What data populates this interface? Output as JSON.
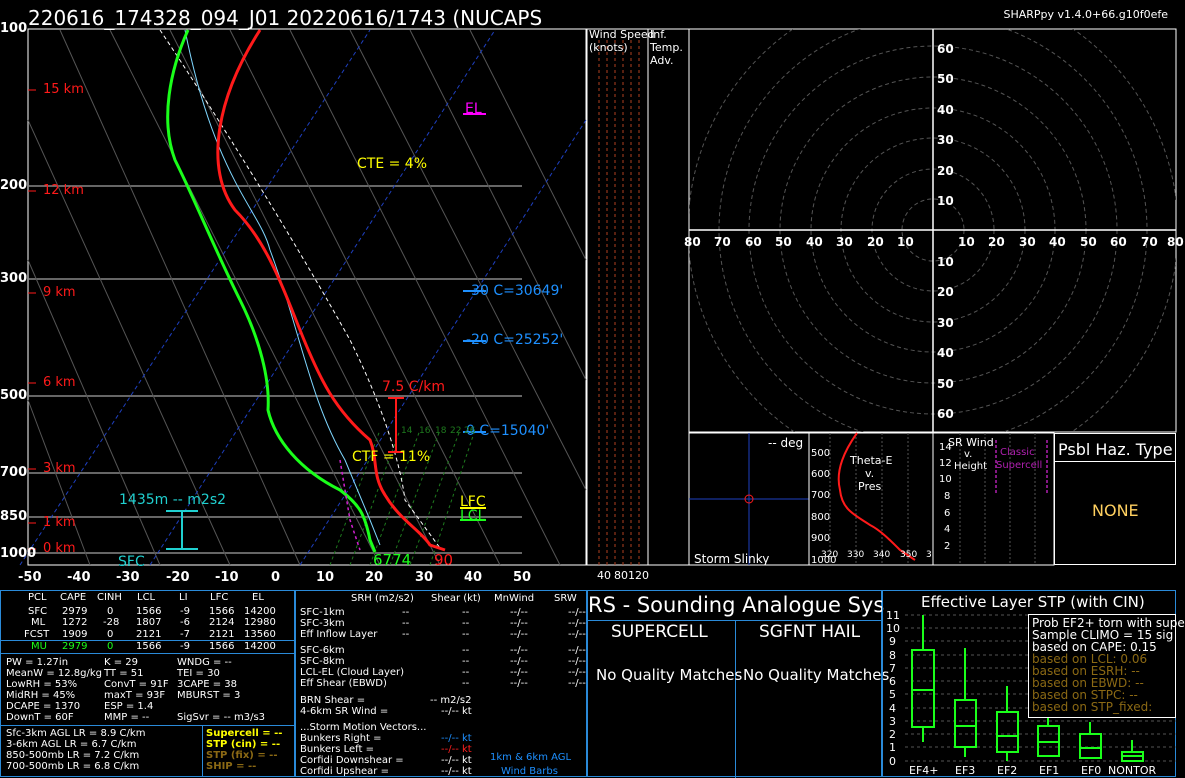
{
  "header": {
    "title": "220616_174328_094_J01   20220616/1743  (NUCAPS",
    "version": "SHARPpy v1.4.0+66.g10f0efe"
  },
  "skewt": {
    "pressure_labels": [
      "100",
      "200",
      "300",
      "500",
      "700",
      "850",
      "1000"
    ],
    "height_labels": [
      "15 km",
      "12 km",
      "9 km",
      "6 km",
      "3 km",
      "1 km",
      "0 km"
    ],
    "temp_labels": [
      "-50",
      "-40",
      "-30",
      "-20",
      "-10",
      "0",
      "10",
      "20",
      "30",
      "40"
    ],
    "temp_label_last": "50",
    "el_label": "EL",
    "cte": "CTE = 4%",
    "ctf": "CTF = 11%",
    "lr": "7.5 C/km",
    "lfc": "LFC",
    "lcl": "LCL",
    "sfc": "SFC",
    "eff_inflow": "1435m -- m2s2",
    "c_labels": [
      "-30 C=30649'",
      "-20 C=25252'",
      "0 C=15040'"
    ],
    "sfc_td": "6774",
    "sfc_t": "90",
    "moist_adiabat_labels": [
      "14",
      "16",
      "18",
      "22",
      "26"
    ]
  },
  "wind_speed": {
    "title": "Wind Speed",
    "sub": "(knots)",
    "ticks": [
      "40",
      "80",
      "120"
    ]
  },
  "inf_temp": {
    "line1": "Inf.",
    "line2": "Temp.",
    "line3": "Adv."
  },
  "hodograph": {
    "rings_top": [
      "60",
      "50",
      "40",
      "30",
      "20",
      "10"
    ],
    "rings_bottom": [
      "10",
      "20",
      "30",
      "40",
      "50",
      "60"
    ],
    "axis_left": [
      "80",
      "70",
      "60",
      "50",
      "40",
      "30",
      "20",
      "10"
    ],
    "axis_right": [
      "10",
      "20",
      "30",
      "40",
      "50",
      "60",
      "70",
      "80"
    ]
  },
  "storm_slinky": {
    "deg": "-- deg",
    "label": "Storm Slinky"
  },
  "theta": {
    "title": "Theta-E",
    "v": "v.",
    "pres": "Pres",
    "y_ticks": [
      "500",
      "600",
      "700",
      "800",
      "900",
      "1000"
    ],
    "x_ticks": [
      "320",
      "330",
      "340",
      "350"
    ],
    "x_tick_cut": "3"
  },
  "srwind": {
    "title": "SR Wind",
    "v": "v.",
    "height": "Height",
    "classic": "Classic",
    "supercell": "Supercell",
    "y_ticks": [
      "14",
      "12",
      "10",
      "8",
      "6",
      "4",
      "2"
    ]
  },
  "haz": {
    "title": "Psbl Haz. Type",
    "value": "NONE"
  },
  "params": {
    "headers": [
      "PCL",
      "CAPE",
      "CINH",
      "LCL",
      "LI",
      "LFC",
      "EL"
    ],
    "rows": [
      [
        "SFC",
        "2979",
        "0",
        "1566",
        "-9",
        "1566",
        "14200"
      ],
      [
        "ML",
        "1272",
        "-28",
        "1807",
        "-6",
        "2124",
        "12980"
      ],
      [
        "FCST",
        "1909",
        "0",
        "2121",
        "-7",
        "2121",
        "13560"
      ],
      [
        "MU",
        "2979",
        "0",
        "1566",
        "-9",
        "1566",
        "14200"
      ]
    ],
    "misc": [
      [
        "PW = 1.27in",
        "K = 29",
        "WNDG = --"
      ],
      [
        "MeanW = 12.8g/kg",
        "TT = 51",
        "TEI = 30"
      ],
      [
        "LowRH = 53%",
        "ConvT = 91F",
        "3CAPE = 38"
      ],
      [
        "MidRH = 45%",
        "maxT = 93F",
        "MBURST = 3"
      ],
      [
        "DCAPE = 1370",
        "ESP = 1.4",
        ""
      ],
      [
        "DownT = 60F",
        "MMP = --",
        "SigSvr = -- m3/s3"
      ]
    ],
    "lapse": [
      "Sfc-3km AGL LR = 8.9 C/km",
      "3-6km AGL LR = 6.7 C/km",
      "850-500mb LR = 7.2 C/km",
      "700-500mb LR = 6.8 C/km"
    ],
    "composites": [
      {
        "text": "Supercell = --",
        "color": "#ffff00"
      },
      {
        "text": "STP (cin) = --",
        "color": "#ffff00"
      },
      {
        "text": "STP (fix) = --",
        "color": "#8b6914"
      },
      {
        "text": "SHIP = --",
        "color": "#8b6914"
      }
    ]
  },
  "kinematics": {
    "headers": [
      "SRH (m2/s2)",
      "Shear (kt)",
      "MnWind",
      "SRW"
    ],
    "rows": [
      [
        "SFC-1km",
        "--",
        "--",
        "--/--",
        "--/--"
      ],
      [
        "SFC-3km",
        "--",
        "--",
        "--/--",
        "--/--"
      ],
      [
        "Eff Inflow Layer",
        "--",
        "--",
        "--/--",
        "--/--"
      ],
      [
        "SFC-6km",
        "",
        "--",
        "--/--",
        "--/--"
      ],
      [
        "SFC-8km",
        "",
        "--",
        "--/--",
        "--/--"
      ],
      [
        "LCL-EL (Cloud Layer)",
        "",
        "--",
        "--/--",
        "--/--"
      ],
      [
        "Eff Shear (EBWD)",
        "",
        "--",
        "--/--",
        "--/--"
      ]
    ],
    "brn_shear": "BRN Shear =",
    "brn_shear_val": "-- m2/s2",
    "sr_wind": "4-6km SR Wind =",
    "sr_wind_val": "--/-- kt",
    "storm_motion": "...Storm Motion Vectors...",
    "motions": [
      {
        "label": "Bunkers Right =",
        "val": "--/-- kt",
        "color": "#1e90ff"
      },
      {
        "label": "Bunkers Left =",
        "val": "--/-- kt",
        "color": "#ff2020"
      },
      {
        "label": "Corfidi Downshear =",
        "val": "--/-- kt",
        "color": "#ffffff"
      },
      {
        "label": "Corfidi Upshear =",
        "val": "--/-- kt",
        "color": "#ffffff"
      }
    ],
    "barbs_note1": "1km & 6km AGL",
    "barbs_note2": "Wind Barbs"
  },
  "analogue": {
    "title": "RS - Sounding Analogue Sys",
    "supercell": "SUPERCELL",
    "sgfnt_hail": "SGFNT HAIL",
    "no_match_left": "No Quality Matches",
    "no_match_right": "No Quality Matches"
  },
  "stp": {
    "title": "Effective Layer STP (with CIN)",
    "y_ticks": [
      "11",
      "10",
      "9",
      "8",
      "7",
      "6",
      "5",
      "4",
      "3",
      "2",
      "1",
      "0"
    ],
    "categories": [
      "EF4+",
      "EF3",
      "EF2",
      "EF1",
      "EF0",
      "NONTOR"
    ],
    "box_lines": [
      {
        "text": "Prob EF2+ torn with supe",
        "color": "#ffffff"
      },
      {
        "text": "Sample CLIMO =  15 sig",
        "color": "#ffffff"
      },
      {
        "text": "based on CAPE:  0.15",
        "color": "#ffffff"
      },
      {
        "text": "based on LCL:      0.06",
        "color": "#8b6914"
      },
      {
        "text": "based on ESRH:  --",
        "color": "#8b6914"
      },
      {
        "text": "based on EBWD:  --",
        "color": "#8b6914"
      },
      {
        "text": "based on STPC:   --",
        "color": "#8b6914"
      },
      {
        "text": "based on STP_fixed:",
        "color": "#8b6914"
      }
    ]
  }
}
